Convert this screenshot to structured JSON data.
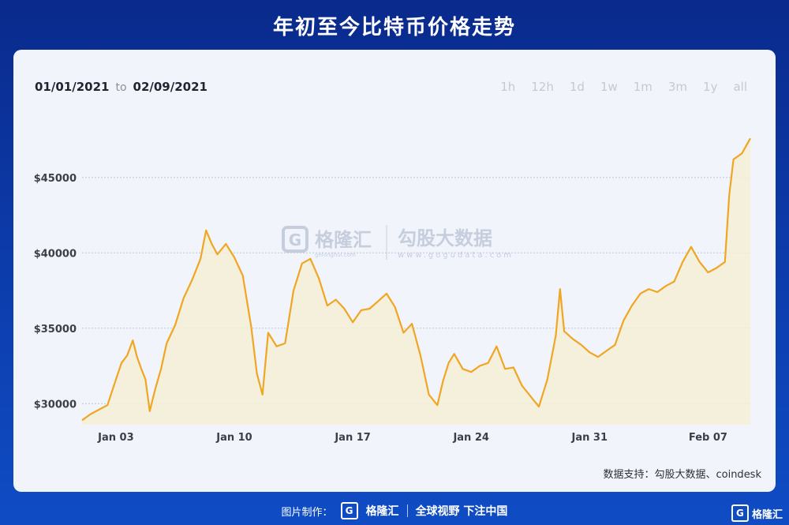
{
  "header": {
    "title": "年初至今比特币价格走势"
  },
  "date_range": {
    "start": "01/01/2021",
    "to_label": "to",
    "end": "02/09/2021"
  },
  "period_buttons": [
    "1h",
    "12h",
    "1d",
    "1w",
    "1m",
    "3m",
    "1y",
    "all"
  ],
  "watermark": {
    "logo_letter": "G",
    "brand": "格隆汇",
    "sub": "gelonghui.com",
    "data_brand": "勾股大数据",
    "data_sub": "www.gogudata.com"
  },
  "source": "数据支持：勾股大数据、coindesk",
  "footer": {
    "prefix": "图片制作：",
    "logo_letter": "G",
    "brand": "格隆汇",
    "slogan": "全球视野 下注中国"
  },
  "corner_logo": {
    "letter": "G",
    "brand": "格隆汇"
  },
  "colors": {
    "line": "#f0a623",
    "grid": "#bcc6dc",
    "fill": "#f4efd6"
  },
  "chart_data": {
    "type": "line",
    "title": "年初至今比特币价格走势",
    "xlabel": "",
    "ylabel": "",
    "x_ticks": [
      "Jan 03",
      "Jan 10",
      "Jan 17",
      "Jan 24",
      "Jan 31",
      "Feb 07"
    ],
    "y_ticks": [
      "$30000",
      "$35000",
      "$40000",
      "$45000"
    ],
    "y_tick_values": [
      30000,
      35000,
      40000,
      45000
    ],
    "ylim": [
      28600,
      48500
    ],
    "xlim": [
      "2021-01-01",
      "2021-02-09"
    ],
    "series": [
      {
        "values": [
          [
            "2021-01-01",
            28900
          ],
          [
            "2021-01-01T12",
            29300
          ],
          [
            "2021-01-02",
            29600
          ],
          [
            "2021-01-02T12",
            29900
          ],
          [
            "2021-01-03",
            31600
          ],
          [
            "2021-01-03T08",
            32700
          ],
          [
            "2021-01-03T16",
            33200
          ],
          [
            "2021-01-04",
            34200
          ],
          [
            "2021-01-04T06",
            33100
          ],
          [
            "2021-01-04T12",
            32300
          ],
          [
            "2021-01-04T18",
            31600
          ],
          [
            "2021-01-05",
            29500
          ],
          [
            "2021-01-05T08",
            31000
          ],
          [
            "2021-01-05T16",
            32300
          ],
          [
            "2021-01-06",
            34000
          ],
          [
            "2021-01-06T12",
            35200
          ],
          [
            "2021-01-07",
            37000
          ],
          [
            "2021-01-07T12",
            38200
          ],
          [
            "2021-01-08",
            39600
          ],
          [
            "2021-01-08T08",
            41500
          ],
          [
            "2021-01-08T16",
            40600
          ],
          [
            "2021-01-09",
            39900
          ],
          [
            "2021-01-09T12",
            40600
          ],
          [
            "2021-01-10",
            39700
          ],
          [
            "2021-01-10T12",
            38500
          ],
          [
            "2021-01-11",
            35100
          ],
          [
            "2021-01-11T08",
            32000
          ],
          [
            "2021-01-11T16",
            30600
          ],
          [
            "2021-01-12",
            34700
          ],
          [
            "2021-01-12T12",
            33800
          ],
          [
            "2021-01-13",
            34000
          ],
          [
            "2021-01-13T12",
            37500
          ],
          [
            "2021-01-14",
            39300
          ],
          [
            "2021-01-14T12",
            39600
          ],
          [
            "2021-01-15",
            38300
          ],
          [
            "2021-01-15T12",
            36500
          ],
          [
            "2021-01-16",
            36900
          ],
          [
            "2021-01-16T12",
            36300
          ],
          [
            "2021-01-17",
            35400
          ],
          [
            "2021-01-17T12",
            36200
          ],
          [
            "2021-01-18",
            36300
          ],
          [
            "2021-01-18T12",
            36800
          ],
          [
            "2021-01-19",
            37300
          ],
          [
            "2021-01-19T12",
            36400
          ],
          [
            "2021-01-20",
            34700
          ],
          [
            "2021-01-20T12",
            35300
          ],
          [
            "2021-01-21",
            33200
          ],
          [
            "2021-01-21T12",
            30600
          ],
          [
            "2021-01-22",
            29900
          ],
          [
            "2021-01-22T08",
            31500
          ],
          [
            "2021-01-22T16",
            32700
          ],
          [
            "2021-01-23",
            33300
          ],
          [
            "2021-01-23T12",
            32300
          ],
          [
            "2021-01-24",
            32100
          ],
          [
            "2021-01-24T12",
            32500
          ],
          [
            "2021-01-25",
            32700
          ],
          [
            "2021-01-25T12",
            33800
          ],
          [
            "2021-01-26",
            32300
          ],
          [
            "2021-01-26T12",
            32400
          ],
          [
            "2021-01-27",
            31200
          ],
          [
            "2021-01-27T12",
            30500
          ],
          [
            "2021-01-28",
            29800
          ],
          [
            "2021-01-28T12",
            31600
          ],
          [
            "2021-01-29",
            34500
          ],
          [
            "2021-01-29T06",
            37600
          ],
          [
            "2021-01-29T12",
            34800
          ],
          [
            "2021-01-30",
            34300
          ],
          [
            "2021-01-30T12",
            33900
          ],
          [
            "2021-01-31",
            33400
          ],
          [
            "2021-01-31T12",
            33100
          ],
          [
            "2021-02-01",
            33500
          ],
          [
            "2021-02-01T12",
            33900
          ],
          [
            "2021-02-02",
            35500
          ],
          [
            "2021-02-02T12",
            36500
          ],
          [
            "2021-02-03",
            37300
          ],
          [
            "2021-02-03T12",
            37600
          ],
          [
            "2021-02-04",
            37400
          ],
          [
            "2021-02-04T12",
            37800
          ],
          [
            "2021-02-05",
            38100
          ],
          [
            "2021-02-05T12",
            39400
          ],
          [
            "2021-02-06",
            40400
          ],
          [
            "2021-02-06T12",
            39400
          ],
          [
            "2021-02-07",
            38700
          ],
          [
            "2021-02-07T12",
            39000
          ],
          [
            "2021-02-08",
            39400
          ],
          [
            "2021-02-08T06",
            43800
          ],
          [
            "2021-02-08T12",
            46200
          ],
          [
            "2021-02-09",
            46600
          ],
          [
            "2021-02-09T12",
            47600
          ]
        ]
      }
    ]
  }
}
